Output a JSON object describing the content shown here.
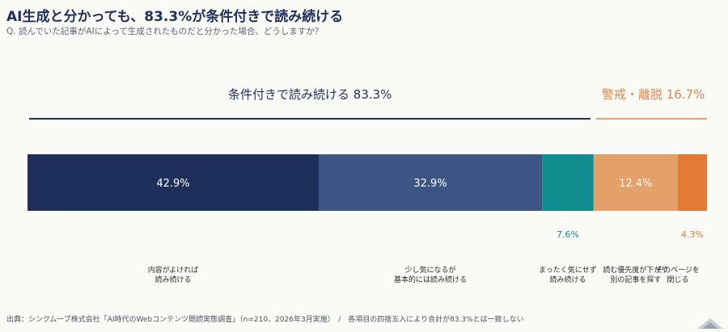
{
  "title": "AI生成と分かっても、83.3%が条件付きで読み続ける",
  "subtitle": "Q. 読んでいた記事がAIによって生成されたものだと分かった場合、どうしますか？",
  "groups": {
    "continue": "条件付きで読み続ける  83.3%",
    "exit": "警戒・離脱  16.7%"
  },
  "colors": {
    "navy": "#1f2f5c",
    "orange": "#e0854a"
  },
  "chart_data": {
    "type": "bar",
    "orientation": "horizontal-stacked",
    "unit": "%",
    "xlim": [
      0,
      100
    ],
    "categories": [
      "内容がよければ\n読み続ける",
      "少し気になるが\n基本的には読み続ける",
      "まったく気にせず\n読み続ける",
      "読む優先度が下がり\n別の記事を探す",
      "そのページを\n閉じる"
    ],
    "values": [
      42.9,
      32.9,
      7.6,
      12.4,
      4.3
    ],
    "value_labels": [
      "42.9%",
      "32.9%",
      "7.6%",
      "12.4%",
      "4.3%"
    ],
    "colors": [
      "#1f2f5c",
      "#3d5585",
      "#118d8f",
      "#e59f68",
      "#e27b35"
    ],
    "label_inside": [
      true,
      true,
      false,
      true,
      false
    ],
    "grid": false
  },
  "footer": "出典：シンクムーブ株式会社「AI時代のWebコンテンツ閲読実態調査」（n=210、2026年3月実施）　/　各項目の四捨五入により合計が83.3%とは一致しない"
}
